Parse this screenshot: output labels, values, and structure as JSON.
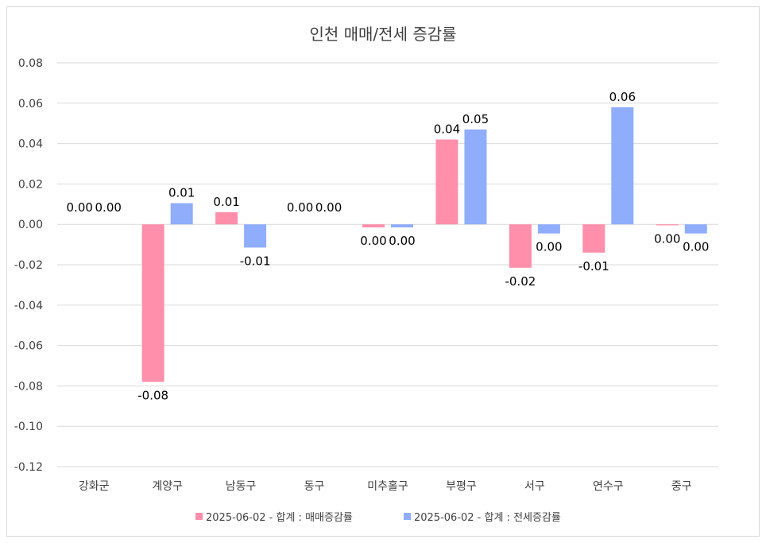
{
  "chart_data": {
    "type": "bar",
    "title": "인천 매매/전세 증감률",
    "categories": [
      "강화군",
      "계양구",
      "남동구",
      "동구",
      "미추홀구",
      "부평구",
      "서구",
      "연수구",
      "중구"
    ],
    "series": [
      {
        "name": "2025-06-02 - 합계 : 매매증감률",
        "color": "#ff8fab",
        "values": [
          0.0,
          -0.078,
          0.006,
          0.0,
          -0.0015,
          0.042,
          -0.0215,
          -0.014,
          -0.0005
        ],
        "labels": [
          "0.00",
          "-0.08",
          "0.01",
          "0.00",
          "0.00",
          "0.04",
          "-0.02",
          "-0.01",
          "0.00"
        ]
      },
      {
        "name": "2025-06-02 - 합계 : 전세증감률",
        "color": "#8fadfa",
        "values": [
          0.0,
          0.0105,
          -0.0115,
          0.0,
          -0.0015,
          0.047,
          -0.0045,
          0.058,
          -0.0045
        ],
        "labels": [
          "0.00",
          "0.01",
          "-0.01",
          "0.00",
          "0.00",
          "0.05",
          "0.00",
          "0.06",
          "0.00"
        ]
      }
    ],
    "ylim": [
      -0.12,
      0.08
    ],
    "yticks": [
      "0.08",
      "0.06",
      "0.04",
      "0.02",
      "0.00",
      "-0.02",
      "-0.04",
      "-0.06",
      "-0.08",
      "-0.10",
      "-0.12"
    ],
    "ytick_values": [
      0.08,
      0.06,
      0.04,
      0.02,
      0.0,
      -0.02,
      -0.04,
      -0.06,
      -0.08,
      -0.1,
      -0.12
    ],
    "grid": true,
    "legend_position": "bottom"
  }
}
